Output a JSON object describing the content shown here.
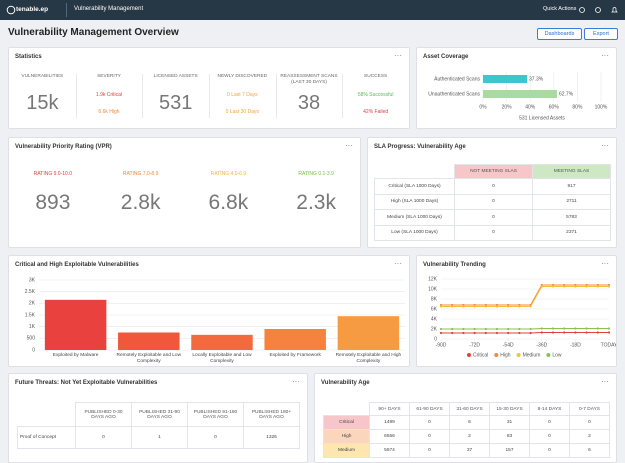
{
  "topbar": {
    "logo": "tenable.ep",
    "product": "Vulnerability Management",
    "quick_actions": "Quick Actions"
  },
  "header": {
    "title": "Vulnerability Management Overview",
    "buttons": [
      "Dashboards",
      "Export"
    ]
  },
  "statistics": {
    "title": "Statistics",
    "columns": [
      {
        "label": "VULNERABILITIES",
        "value": "15k"
      },
      {
        "label": "SEVERITY",
        "lines": [
          {
            "text": "1.9k Critical",
            "color": "#e0413d"
          },
          {
            "text": "6.6k High",
            "color": "#f08a3c"
          }
        ]
      },
      {
        "label": "LICENSED ASSETS",
        "value": "531"
      },
      {
        "label": "NEWLY DISCOVERED",
        "lines": [
          {
            "text": "0 Last 7 Days",
            "color": "#f0a43c"
          },
          {
            "text": "0 Last 30 Days",
            "color": "#f0a43c"
          }
        ]
      },
      {
        "label": "REASSESSMENT SCANS (LAST 30 DAYS)",
        "value": "38"
      },
      {
        "label": "SUCCESS",
        "lines": [
          {
            "text": "58% Successful",
            "color": "#5cb85c"
          },
          {
            "text": "42% Failed",
            "color": "#e0413d"
          }
        ]
      }
    ]
  },
  "vpr": {
    "title": "Vulnerability Priority Rating (VPR)",
    "ratings": [
      {
        "label": "RATING 9.0-10.0",
        "value": "893",
        "color": "#e0413d"
      },
      {
        "label": "RATING 7.0-8.9",
        "value": "2.8k",
        "color": "#f08a3c"
      },
      {
        "label": "RATING 4.0-6.9",
        "value": "6.8k",
        "color": "#f0b43c"
      },
      {
        "label": "RATING 0.1-3.9",
        "value": "2.3k",
        "color": "#6fbf4a"
      }
    ]
  },
  "sla": {
    "title": "SLA Progress: Vulnerability Age",
    "headers": [
      "NOT MEETING SLAS",
      "MEETING SLAS"
    ],
    "header_colors": [
      "#f7c6c9",
      "#cfe8c4"
    ],
    "rows": [
      {
        "label": "Critical (SLA 1000 Days)",
        "cells": [
          "0",
          "917"
        ]
      },
      {
        "label": "High (SLA 1000 Days)",
        "cells": [
          "0",
          "2711"
        ]
      },
      {
        "label": "Medium (SLA 1000 Days)",
        "cells": [
          "0",
          "5783"
        ]
      },
      {
        "label": "Low (SLA 1000 Days)",
        "cells": [
          "0",
          "2371"
        ]
      }
    ]
  },
  "future_threats": {
    "title": "Future Threats: Not Yet Exploitable Vulnerabilities",
    "headers": [
      "PUBLISHED 0-30 DAYS AGO",
      "PUBLISHED 31-90 DAYS AGO",
      "PUBLISHED 91-180 DAYS AGO",
      "PUBLISHED 180+ DAYS AGO"
    ],
    "rows": [
      {
        "label": "Proof of Concept",
        "cells": [
          "0",
          "1",
          "0",
          "1326"
        ]
      }
    ]
  },
  "vulnerability_age": {
    "title": "Vulnerability Age",
    "headers": [
      "90+ DAYS",
      "61-90 DAYS",
      "31-60 DAYS",
      "15-30 DAYS",
      "8-14 DAYS",
      "0-7 DAYS"
    ],
    "row_colors": [
      "#f7c6c9",
      "#fbd6bd",
      "#fde6b0"
    ],
    "rows": [
      {
        "label": "Critical",
        "cells": [
          "1499",
          "0",
          "6",
          "31",
          "0",
          "0"
        ]
      },
      {
        "label": "High",
        "cells": [
          "6556",
          "0",
          "2",
          "83",
          "0",
          "2"
        ]
      },
      {
        "label": "Medium",
        "cells": [
          "5674",
          "0",
          "37",
          "157",
          "0",
          "6"
        ]
      }
    ]
  },
  "chart_data": [
    {
      "type": "hbar",
      "title": "Asset Coverage",
      "categories": [
        "Authenticated Scans",
        "Unauthenticated Scans"
      ],
      "values": [
        37.3,
        62.7
      ],
      "value_labels": [
        "37.3%",
        "62.7%"
      ],
      "colors": [
        "#3cc6d0",
        "#a9dba0"
      ],
      "xlim": [
        0,
        100
      ],
      "xticks": [
        {
          "value": 0,
          "label": "0%"
        },
        {
          "value": 20,
          "label": "20%"
        },
        {
          "value": 40,
          "label": "40%"
        },
        {
          "value": 60,
          "label": "60%"
        },
        {
          "value": 80,
          "label": "80%"
        },
        {
          "value": 100,
          "label": "100%"
        }
      ],
      "footer": "531 Licensed Assets"
    },
    {
      "type": "bar",
      "title": "Critical and High Exploitable Vulnerabilities",
      "categories": [
        "Exploited by Malware",
        "Remotely Exploitable and Low Complexity",
        "Locally Exploitable and Low Complexity",
        "Exploited by Framework",
        "Remotely Exploitable and High Complexity"
      ],
      "values": [
        2150,
        750,
        650,
        900,
        1450
      ],
      "colors": [
        "#e8413e",
        "#f0573b",
        "#f36a3c",
        "#f5833f",
        "#f79b43"
      ],
      "ylim": [
        0,
        3000
      ],
      "yticks": [
        0,
        500,
        {
          "value": 1000,
          "label": "1K"
        },
        {
          "value": 1500,
          "label": "1.5K"
        },
        {
          "value": 2000,
          "label": "2K"
        },
        {
          "value": 2500,
          "label": "2.5K"
        },
        {
          "value": 3000,
          "label": "3K"
        }
      ],
      "grid": true
    },
    {
      "type": "line",
      "title": "Vulnerability Trending",
      "x": [
        -90,
        -84,
        -78,
        -72,
        -66,
        -60,
        -54,
        -48,
        -42,
        -36,
        -30,
        -24,
        -18,
        -12,
        -6,
        0
      ],
      "series": [
        {
          "name": "Critical",
          "color": "#e0413d",
          "values": [
            1200,
            1200,
            1200,
            1200,
            1200,
            1200,
            1200,
            1200,
            1200,
            1300,
            1300,
            1300,
            1300,
            1300,
            1300,
            1300
          ]
        },
        {
          "name": "High",
          "color": "#f08a3c",
          "values": [
            6800,
            6800,
            6800,
            6800,
            6800,
            6800,
            6800,
            6800,
            6800,
            10800,
            10800,
            10800,
            10800,
            10800,
            10800,
            10800
          ]
        },
        {
          "name": "Medium",
          "color": "#f2c23a",
          "values": [
            6500,
            6500,
            6500,
            6500,
            6500,
            6500,
            6500,
            6500,
            6500,
            10500,
            10500,
            10500,
            10500,
            10500,
            10500,
            10500
          ]
        },
        {
          "name": "Low",
          "color": "#8cc152",
          "values": [
            2000,
            2000,
            2000,
            2000,
            2000,
            2000,
            2000,
            2000,
            2000,
            2100,
            2100,
            2100,
            2100,
            2100,
            2100,
            2100
          ]
        }
      ],
      "xlim": [
        -90,
        0
      ],
      "xticks": [
        {
          "value": -90,
          "label": "-90D"
        },
        {
          "value": -72,
          "label": "-72D"
        },
        {
          "value": -54,
          "label": "-54D"
        },
        {
          "value": -36,
          "label": "-36D"
        },
        {
          "value": -18,
          "label": "-18D"
        },
        {
          "value": 0,
          "label": "TODAY"
        }
      ],
      "ylim": [
        0,
        12000
      ],
      "yticks": [
        0,
        {
          "value": 2000,
          "label": "2K"
        },
        {
          "value": 4000,
          "label": "4K"
        },
        {
          "value": 6000,
          "label": "6K"
        },
        {
          "value": 8000,
          "label": "8K"
        },
        {
          "value": 10000,
          "label": "10K"
        },
        {
          "value": 12000,
          "label": "12K"
        }
      ],
      "grid": true
    }
  ]
}
